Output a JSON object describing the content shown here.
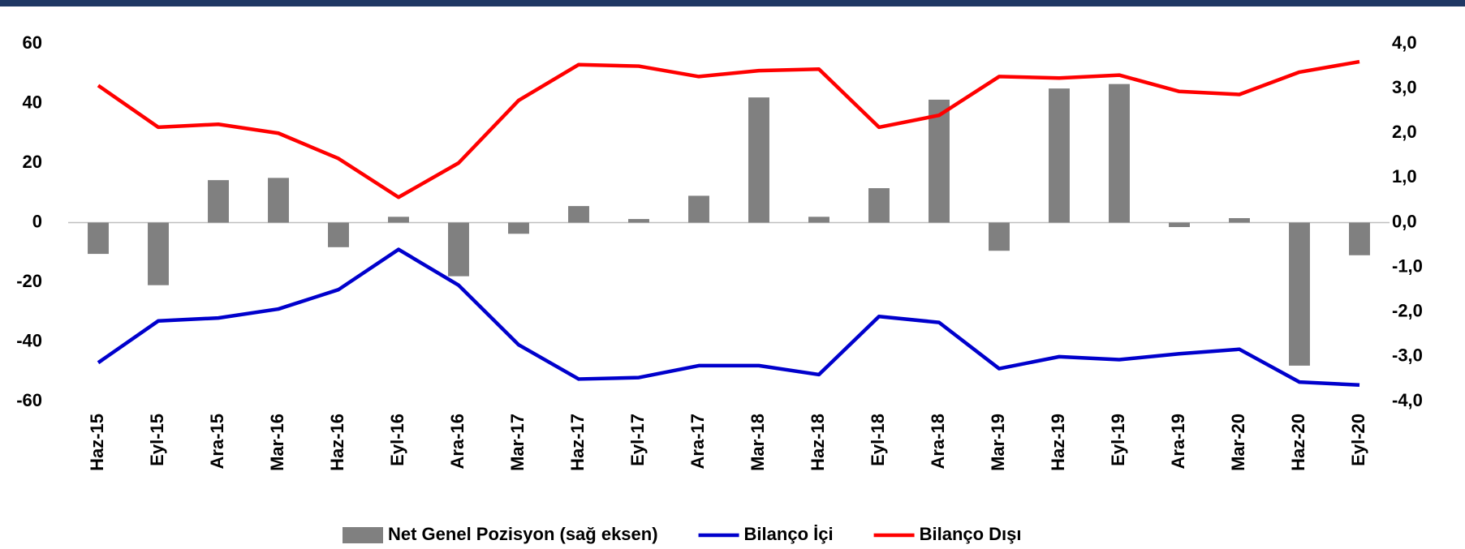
{
  "chart_data": {
    "type": "bar",
    "categories": [
      "Haz-15",
      "Eyl-15",
      "Ara-15",
      "Mar-16",
      "Haz-16",
      "Eyl-16",
      "Ara-16",
      "Mar-17",
      "Haz-17",
      "Eyl-17",
      "Ara-17",
      "Mar-18",
      "Haz-18",
      "Eyl-18",
      "Ara-18",
      "Mar-19",
      "Haz-19",
      "Eyl-19",
      "Ara-19",
      "Mar-20",
      "Haz-20",
      "Eyl-20"
    ],
    "series": [
      {
        "name": "Net Genel Pozisyon (sağ eksen)",
        "type": "bar",
        "axis": "y2",
        "color": "#808080",
        "values": [
          -0.7,
          -1.4,
          0.95,
          1.0,
          -0.55,
          0.13,
          -1.2,
          -0.25,
          0.37,
          0.08,
          0.6,
          2.8,
          0.13,
          0.77,
          2.75,
          -0.63,
          3.0,
          3.1,
          -0.1,
          0.1,
          -3.2,
          -0.73
        ]
      },
      {
        "name": "Bilanço İçi",
        "type": "line",
        "color": "#0000cc",
        "values": [
          -47,
          -33,
          -32,
          -29,
          -22.5,
          -9,
          -21,
          -41,
          -52.5,
          -52,
          -48,
          -48,
          -51,
          -31.5,
          -33.5,
          -49,
          -45,
          -46,
          -44,
          -42.5,
          -53.5,
          -54.5
        ]
      },
      {
        "name": "Bilanço Dışı",
        "type": "line",
        "color": "#ff0000",
        "values": [
          46,
          32,
          33,
          30,
          21.5,
          8.5,
          20,
          41,
          53,
          52.5,
          49,
          51,
          51.5,
          32,
          36,
          49,
          48.5,
          49.5,
          44,
          43,
          50.5,
          54
        ]
      }
    ],
    "ylim": [
      -60,
      60
    ],
    "yticks": [
      60,
      40,
      20,
      0,
      -20,
      -40,
      -60
    ],
    "y2lim": [
      -4,
      4
    ],
    "y2ticks": [
      {
        "value": 4,
        "label": "4,0"
      },
      {
        "value": 3,
        "label": "3,0"
      },
      {
        "value": 2,
        "label": "2,0"
      },
      {
        "value": 1,
        "label": "1,0"
      },
      {
        "value": 0,
        "label": "0,0"
      },
      {
        "value": -1,
        "label": "-1,0"
      },
      {
        "value": -2,
        "label": "-2,0"
      },
      {
        "value": -3,
        "label": "-3,0"
      },
      {
        "value": -4,
        "label": "-4,0"
      }
    ],
    "grid": false,
    "legend": "bottom"
  }
}
